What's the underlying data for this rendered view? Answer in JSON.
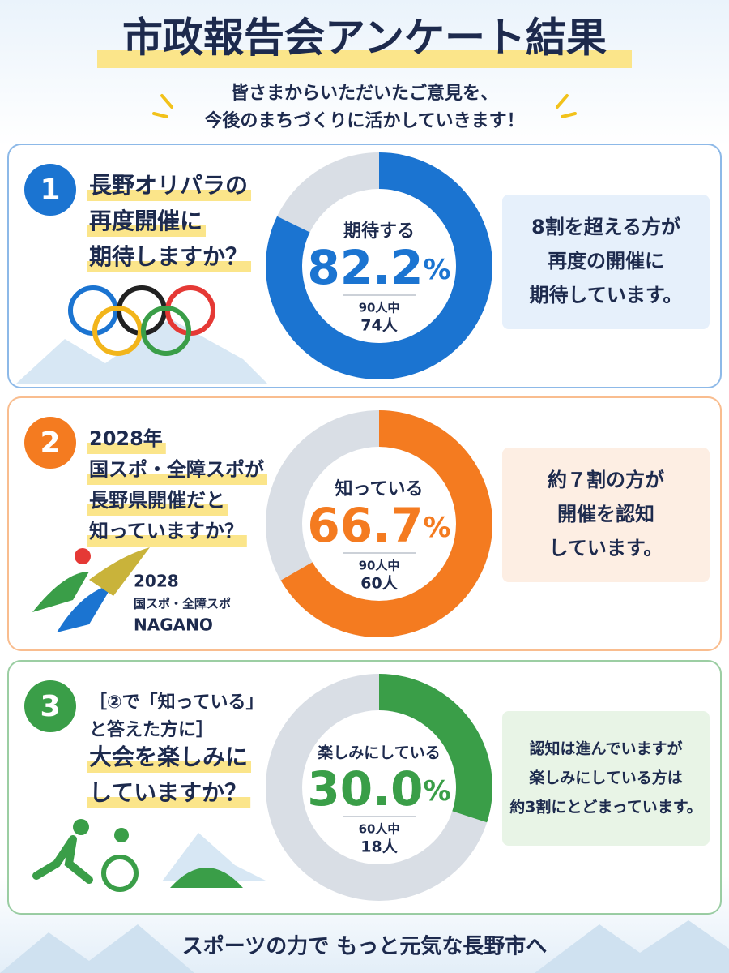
{
  "header": {
    "title": "市政報告会アンケート結果",
    "subtitle": [
      "皆さまからいただいたご意見を、",
      "今後のまちづくりに活かしていきます！"
    ]
  },
  "sections": [
    {
      "number": "1",
      "color": "#1b74d1",
      "light": "#e6f0fb",
      "question": [
        "長野オリパラの",
        "再度開催に",
        "期待しますか？"
      ],
      "answer_label": "期待する",
      "value": 82.2,
      "value_label": "82.2",
      "unit": "%",
      "base": "90人中",
      "count": "74人",
      "comment": [
        "8割を超える方が",
        "再度の開催に",
        "期待しています。"
      ]
    },
    {
      "number": "2",
      "color": "#f47b20",
      "light": "#fdeee3",
      "question": [
        "2028年",
        "国スポ・全障スポが",
        "長野県開催だと",
        "知っていますか？"
      ],
      "logo": [
        "2028",
        "国スポ・全障スポ",
        "NAGANO"
      ],
      "answer_label": "知っている",
      "value": 66.7,
      "value_label": "66.7",
      "unit": "%",
      "base": "90人中",
      "count": "60人",
      "comment": [
        "約７割の方が",
        "開催を認知",
        "しています。"
      ]
    },
    {
      "number": "3",
      "color": "#3a9e48",
      "light": "#e8f4e6",
      "question_note": [
        "［②で「知っている」",
        "と答えた方に］"
      ],
      "question": [
        "大会を楽しみに",
        "していますか？"
      ],
      "answer_label": "楽しみにしている",
      "value": 30.0,
      "value_label": "30.0",
      "unit": "%",
      "base": "60人中",
      "count": "18人",
      "comment": [
        "認知は進んでいますが",
        "楽しみにしている方は",
        "約3割にとどまっています。"
      ]
    }
  ],
  "footer": "スポーツの力で もっと元気な長野市へ"
}
